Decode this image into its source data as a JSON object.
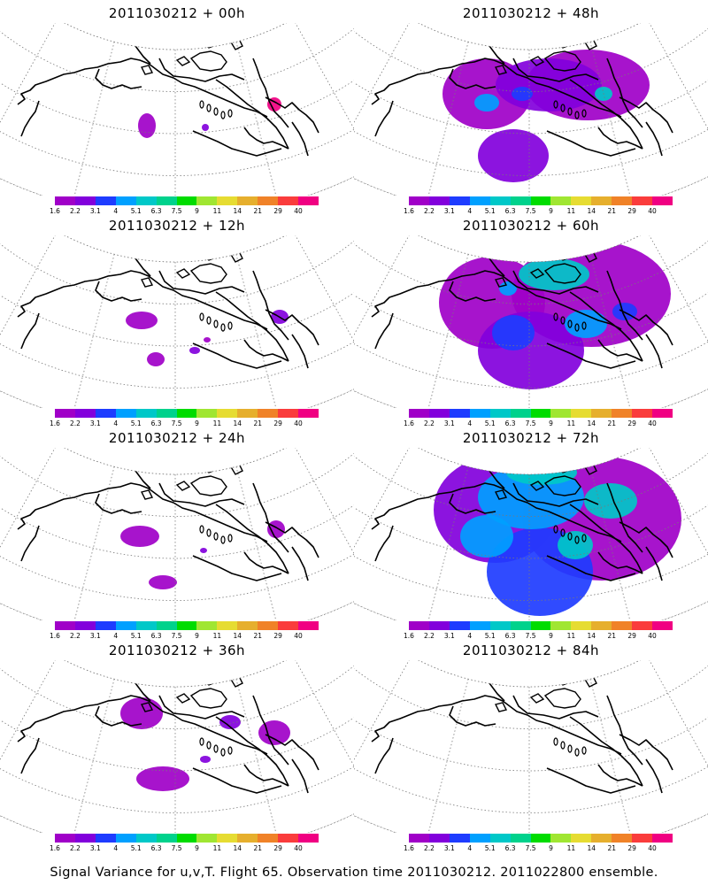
{
  "panels": [
    {
      "title": "2011030212 + 00h",
      "level": 0
    },
    {
      "title": "2011030212 + 48h",
      "level": 4
    },
    {
      "title": "2011030212 + 12h",
      "level": 1
    },
    {
      "title": "2011030212 + 60h",
      "level": 5
    },
    {
      "title": "2011030212 + 24h",
      "level": 2
    },
    {
      "title": "2011030212 + 72h",
      "level": 6
    },
    {
      "title": "2011030212 + 36h",
      "level": 3
    },
    {
      "title": "2011030212 + 84h",
      "level": 7
    }
  ],
  "colorbar": {
    "labels": [
      "1.6",
      "2.2",
      "3.1",
      "4",
      "5.1",
      "6.3",
      "7.5",
      "9",
      "11",
      "14",
      "21",
      "29",
      "40"
    ],
    "colors": [
      "#a000c8",
      "#8200dc",
      "#1e3cff",
      "#00a0ff",
      "#00c8c8",
      "#00d28c",
      "#00dc00",
      "#a0e632",
      "#e6dc32",
      "#e6af2d",
      "#f08228",
      "#fa3c3c",
      "#f00082"
    ]
  },
  "footer": "Signal Variance for u,v,T. Flight 65. Observation time 2011030212. 2011022800 ensemble."
}
